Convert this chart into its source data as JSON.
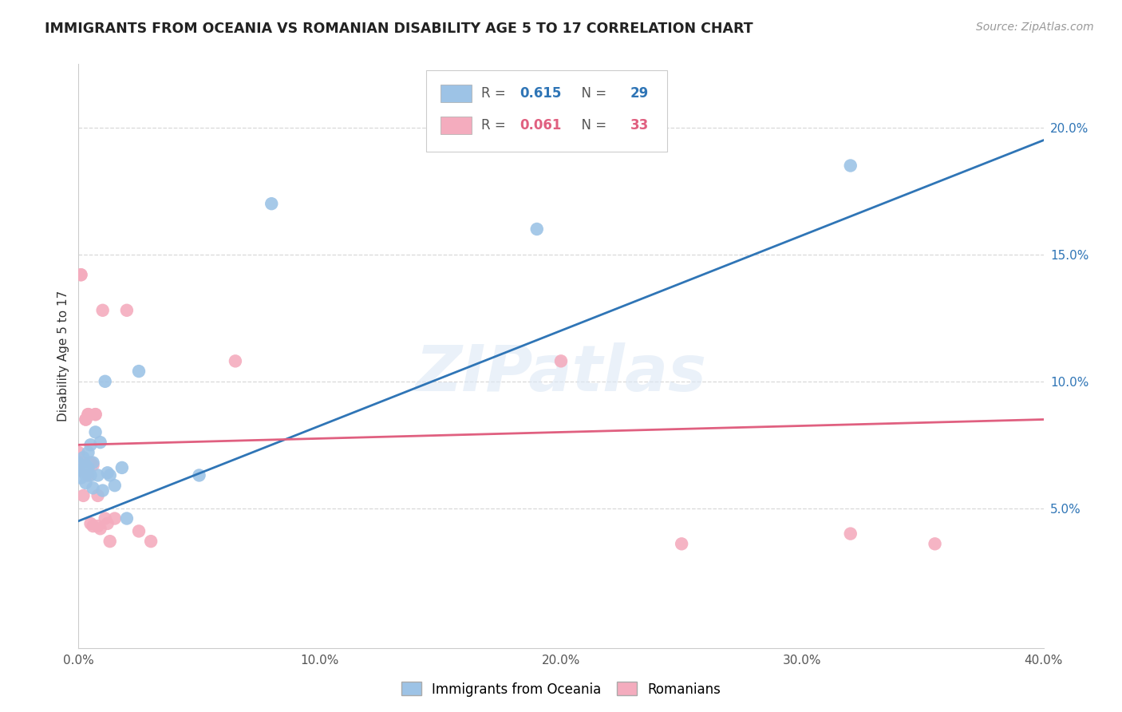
{
  "title": "IMMIGRANTS FROM OCEANIA VS ROMANIAN DISABILITY AGE 5 TO 17 CORRELATION CHART",
  "source": "Source: ZipAtlas.com",
  "ylabel": "Disability Age 5 to 17",
  "xlim": [
    0.0,
    0.4
  ],
  "ylim": [
    -0.005,
    0.225
  ],
  "background_color": "#ffffff",
  "grid_color": "#d8d8d8",
  "watermark": "ZIPatlas",
  "blue_R": 0.615,
  "blue_N": 29,
  "pink_R": 0.061,
  "pink_N": 33,
  "blue_label": "Immigrants from Oceania",
  "pink_label": "Romanians",
  "blue_color": "#9dc3e6",
  "pink_color": "#f4acbe",
  "blue_line_color": "#2f75b6",
  "pink_line_color": "#e06080",
  "blue_x": [
    0.0,
    0.001,
    0.001,
    0.002,
    0.002,
    0.003,
    0.003,
    0.003,
    0.004,
    0.004,
    0.005,
    0.005,
    0.006,
    0.006,
    0.007,
    0.008,
    0.009,
    0.01,
    0.011,
    0.012,
    0.013,
    0.015,
    0.018,
    0.02,
    0.025,
    0.05,
    0.08,
    0.19,
    0.32
  ],
  "blue_y": [
    0.068,
    0.065,
    0.062,
    0.07,
    0.065,
    0.067,
    0.063,
    0.06,
    0.072,
    0.066,
    0.075,
    0.063,
    0.068,
    0.058,
    0.08,
    0.063,
    0.076,
    0.057,
    0.1,
    0.064,
    0.063,
    0.059,
    0.066,
    0.046,
    0.104,
    0.063,
    0.17,
    0.16,
    0.185
  ],
  "pink_x": [
    0.0,
    0.0,
    0.001,
    0.001,
    0.002,
    0.002,
    0.003,
    0.003,
    0.004,
    0.004,
    0.004,
    0.005,
    0.005,
    0.006,
    0.006,
    0.007,
    0.007,
    0.008,
    0.008,
    0.009,
    0.01,
    0.011,
    0.012,
    0.013,
    0.015,
    0.02,
    0.025,
    0.03,
    0.065,
    0.2,
    0.25,
    0.32,
    0.355
  ],
  "pink_y": [
    0.072,
    0.065,
    0.142,
    0.142,
    0.068,
    0.055,
    0.085,
    0.085,
    0.087,
    0.087,
    0.063,
    0.068,
    0.044,
    0.067,
    0.043,
    0.087,
    0.087,
    0.055,
    0.043,
    0.042,
    0.128,
    0.046,
    0.044,
    0.037,
    0.046,
    0.128,
    0.041,
    0.037,
    0.108,
    0.108,
    0.036,
    0.04,
    0.036
  ],
  "xticks": [
    0.0,
    0.1,
    0.2,
    0.3,
    0.4
  ],
  "xtick_labels": [
    "0.0%",
    "10.0%",
    "20.0%",
    "30.0%",
    "40.0%"
  ],
  "yticks_right": [
    0.05,
    0.1,
    0.15,
    0.2
  ],
  "ytick_labels_right": [
    "5.0%",
    "10.0%",
    "15.0%",
    "20.0%"
  ]
}
